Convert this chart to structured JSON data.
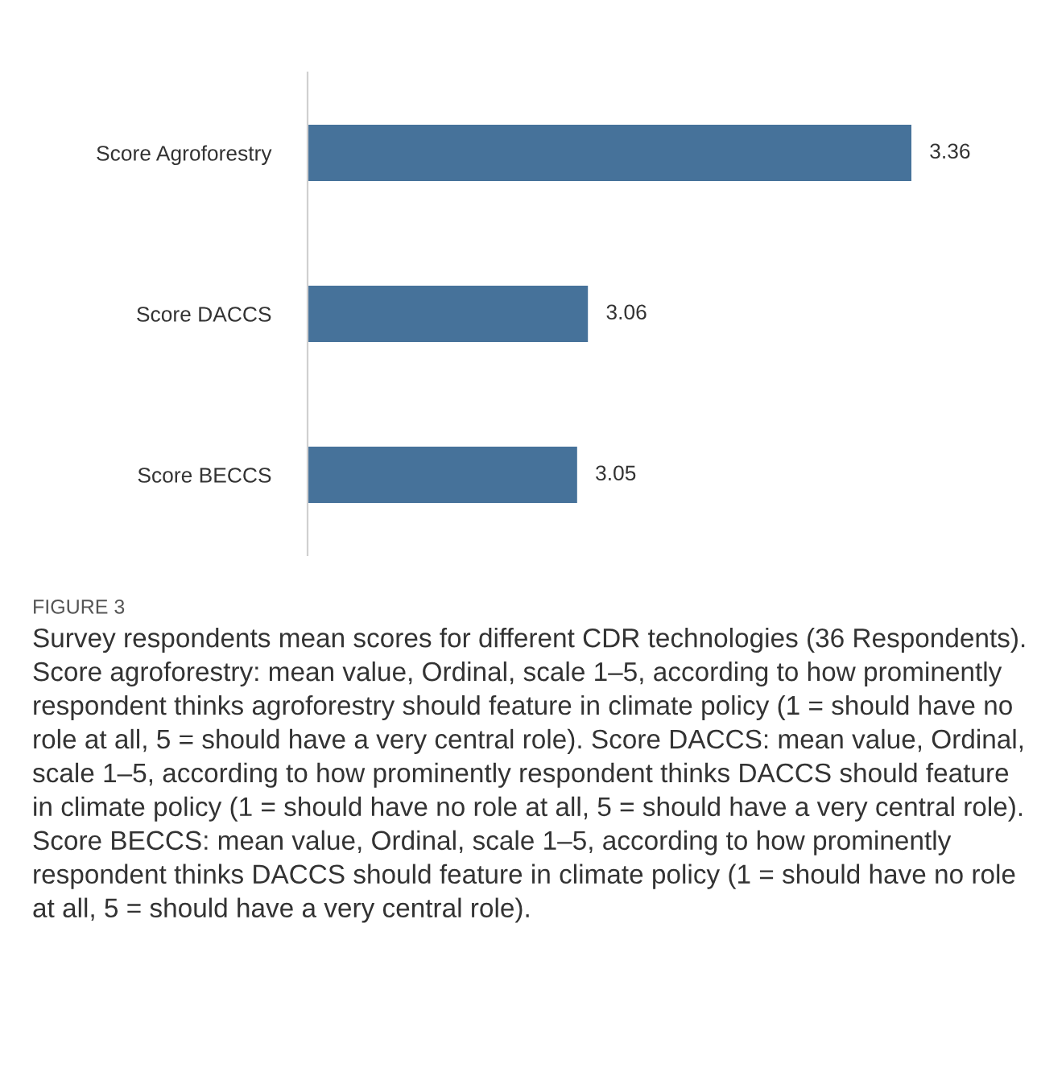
{
  "chart_data": {
    "type": "bar",
    "orientation": "horizontal",
    "categories": [
      "Score Agroforestry",
      "Score DACCS",
      "Score BECCS"
    ],
    "values": [
      3.36,
      3.06,
      3.05
    ],
    "color": "#46729a",
    "xlim": [
      2.8,
      3.36
    ],
    "data_labels": true,
    "grid": false,
    "legend": false,
    "tick_labels": "y",
    "annotations": [
      "FIGURE 3",
      "Survey respondents mean scores for different CDR technologies (36 Respondents). Score agroforestry: mean value, Ordinal, scale 1–5, according to how prominently respondent thinks agroforestry should feature in climate policy (1 = should have no role at all, 5 = should have a very central role). Score DACCS: mean value, Ordinal, scale 1–5, according to how prominently respondent thinks DACCS should feature in climate policy (1 = should have no role at all, 5 = should have a very central role). Score BECCS: mean value, Ordinal, scale 1–5, according to how prominently respondent thinks DACCS should feature in climate policy (1 = should have no role at all, 5 = should have a very central role)."
    ]
  }
}
